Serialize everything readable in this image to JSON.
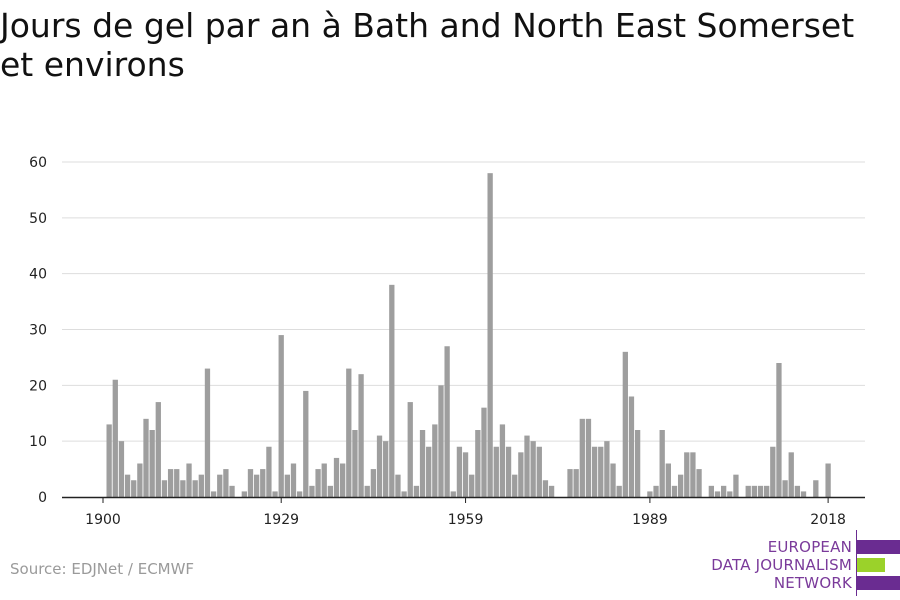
{
  "title": "Jours de gel par an à Bath and North East Somerset et environs",
  "source": "Source: EDJNet / ECMWF",
  "logo": {
    "lines": [
      "EUROPEAN",
      "DATA JOURNALISM",
      "NETWORK"
    ],
    "colors": {
      "purple": "#6a2c91",
      "green": "#9bd22a",
      "text": "#7a3a9a"
    }
  },
  "colors": {
    "bar": "#9e9e9e",
    "grid": "#dddddd",
    "axis": "#222222"
  },
  "chart_data": {
    "type": "bar",
    "title": "Jours de gel par an à Bath and North East Somerset et environs",
    "xlabel": "",
    "ylabel": "",
    "ylim": [
      0,
      60
    ],
    "yticks": [
      0,
      10,
      20,
      30,
      40,
      50,
      60
    ],
    "xticks": [
      1900,
      1929,
      1959,
      1989,
      2018
    ],
    "grid": true,
    "x": [
      1900,
      1901,
      1902,
      1903,
      1904,
      1905,
      1906,
      1907,
      1908,
      1909,
      1910,
      1911,
      1912,
      1913,
      1914,
      1915,
      1916,
      1917,
      1918,
      1919,
      1920,
      1921,
      1922,
      1923,
      1924,
      1925,
      1926,
      1927,
      1928,
      1929,
      1930,
      1931,
      1932,
      1933,
      1934,
      1935,
      1936,
      1937,
      1938,
      1939,
      1940,
      1941,
      1942,
      1943,
      1944,
      1945,
      1946,
      1947,
      1948,
      1949,
      1950,
      1951,
      1952,
      1953,
      1954,
      1955,
      1956,
      1957,
      1958,
      1959,
      1960,
      1961,
      1962,
      1963,
      1964,
      1965,
      1966,
      1967,
      1968,
      1969,
      1970,
      1971,
      1972,
      1973,
      1974,
      1975,
      1976,
      1977,
      1978,
      1979,
      1980,
      1981,
      1982,
      1983,
      1984,
      1985,
      1986,
      1987,
      1988,
      1989,
      1990,
      1991,
      1992,
      1993,
      1994,
      1995,
      1996,
      1997,
      1998,
      1999,
      2000,
      2001,
      2002,
      2003,
      2004,
      2005,
      2006,
      2007,
      2008,
      2009,
      2010,
      2011,
      2012,
      2013,
      2014,
      2015,
      2016,
      2017,
      2018
    ],
    "values": [
      0,
      13,
      21,
      10,
      4,
      3,
      6,
      14,
      12,
      17,
      3,
      5,
      5,
      3,
      6,
      3,
      4,
      23,
      1,
      4,
      5,
      2,
      0,
      1,
      5,
      4,
      5,
      9,
      1,
      29,
      4,
      6,
      1,
      19,
      2,
      5,
      6,
      2,
      7,
      6,
      23,
      12,
      22,
      2,
      5,
      11,
      10,
      38,
      4,
      1,
      17,
      2,
      12,
      9,
      13,
      20,
      27,
      1,
      9,
      8,
      4,
      12,
      16,
      58,
      9,
      13,
      9,
      4,
      8,
      11,
      10,
      9,
      3,
      2,
      0,
      0,
      5,
      5,
      14,
      14,
      9,
      9,
      10,
      6,
      2,
      26,
      18,
      12,
      0,
      1,
      2,
      12,
      6,
      2,
      4,
      8,
      8,
      5,
      0,
      2,
      1,
      2,
      1,
      4,
      0,
      2,
      2,
      2,
      2,
      9,
      24,
      3,
      8,
      2,
      1,
      0,
      3,
      0,
      6
    ]
  }
}
